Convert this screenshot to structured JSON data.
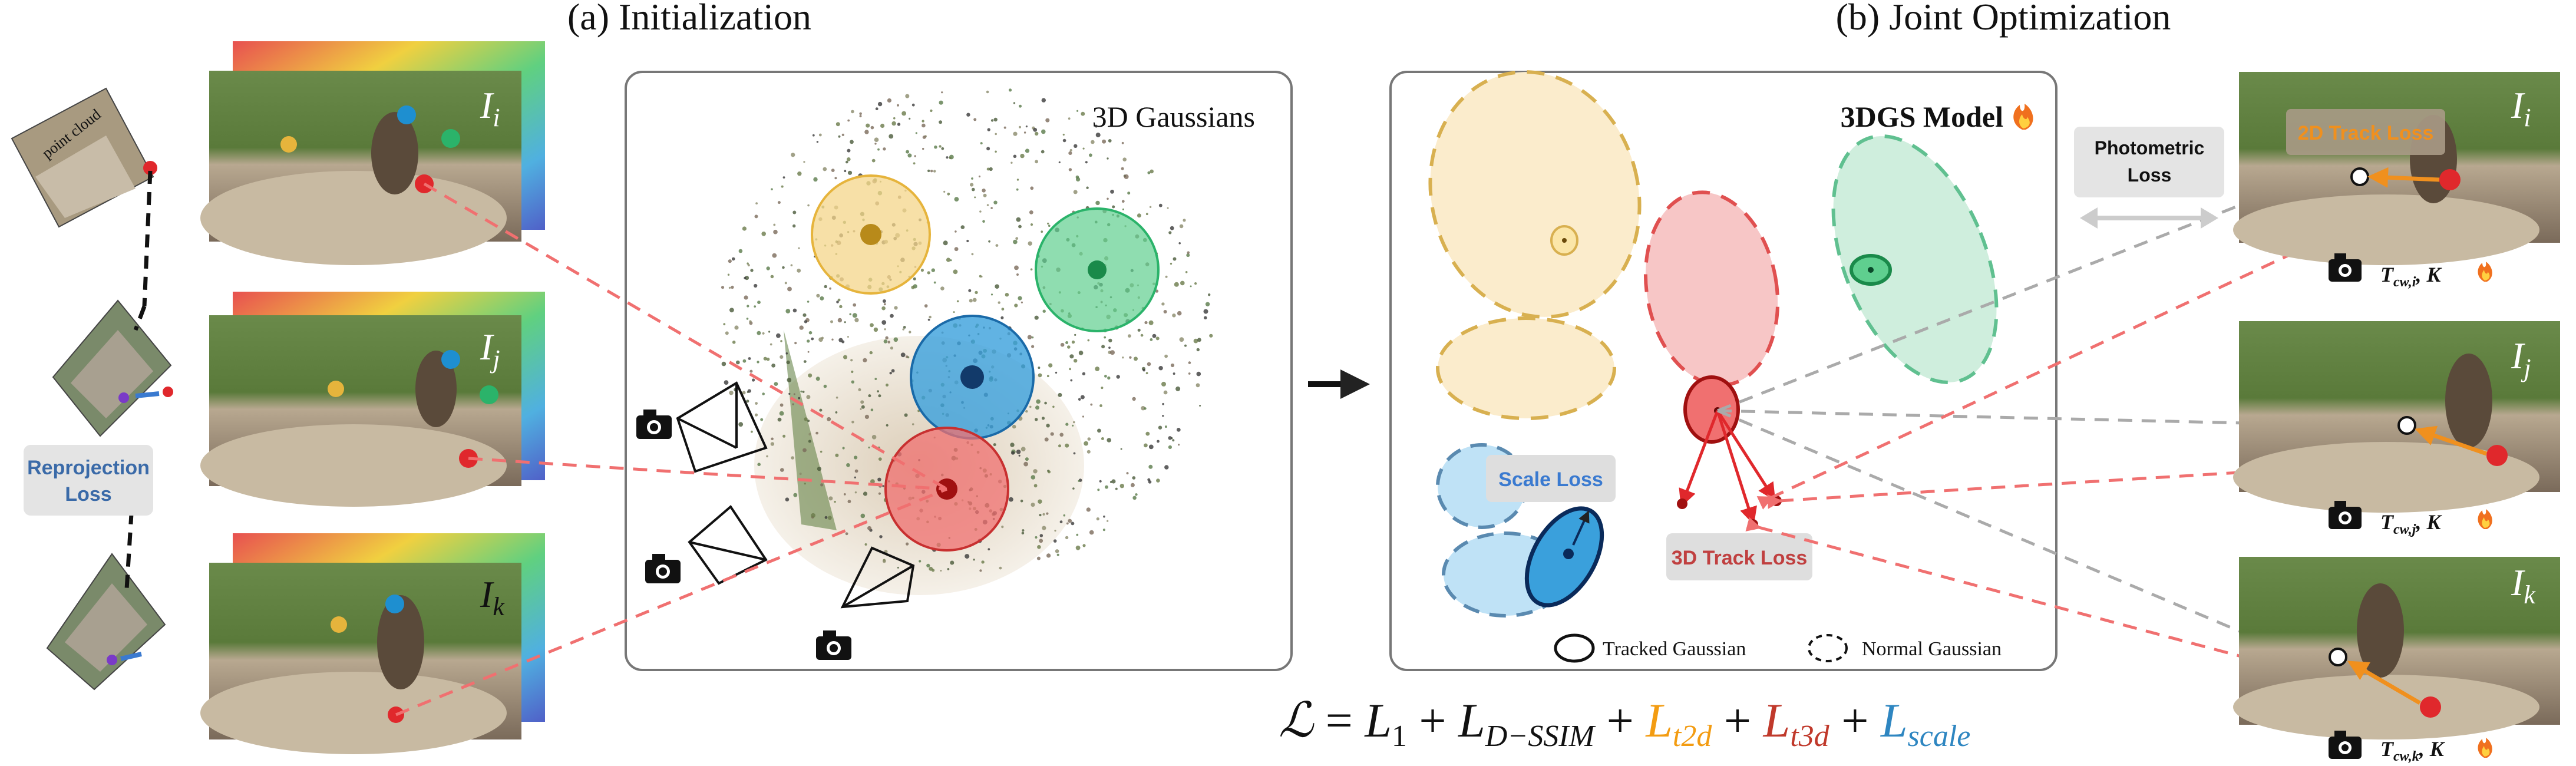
{
  "section_a": {
    "title": "(a) Initialization"
  },
  "section_b": {
    "title": "(b) Joint Optimization"
  },
  "left": {
    "point_cloud_label": "point cloud",
    "reprojection_loss": [
      "Reprojection",
      "Loss"
    ]
  },
  "frames_left": [
    {
      "sym": "I",
      "sub": "i"
    },
    {
      "sym": "I",
      "sub": "j"
    },
    {
      "sym": "I",
      "sub": "k"
    }
  ],
  "panel_a": {
    "label": "3D Gaussians"
  },
  "panel_b": {
    "label": "3DGS Model",
    "scale_loss": "Scale Loss",
    "track3d_loss": "3D Track Loss",
    "legend_tracked": "Tracked Gaussian",
    "legend_normal": "Normal Gaussian"
  },
  "photometric_loss": [
    "Photometric",
    "Loss"
  ],
  "track2d_loss": "2D Track Loss",
  "frames_right": [
    {
      "sym": "I",
      "sub": "i",
      "pose": "T",
      "pose_sub": "cw,i",
      "k": ", K"
    },
    {
      "sym": "I",
      "sub": "j",
      "pose": "T",
      "pose_sub": "cw,j",
      "k": ", K"
    },
    {
      "sym": "I",
      "sub": "k",
      "pose": "T",
      "pose_sub": "cw,k",
      "k": ", K"
    }
  ],
  "equation": {
    "lhs": "ℒ",
    "eq": " = ",
    "l1": "L",
    "l1_sub": "1",
    "plus": " + ",
    "ssim": "L",
    "ssim_sub": "D−SSIM",
    "t2d": "L",
    "t2d_sub": "t2d",
    "t3d": "L",
    "t3d_sub": "t3d",
    "scale": "L",
    "scale_sub": "scale"
  },
  "colors": {
    "yellow": "#e6b43c",
    "green": "#2bb36a",
    "blue": "#1e8fd0",
    "red": "#e0282c",
    "orange": "#f0901e",
    "dashed_red": "#f07070",
    "dashed_gray": "#aaaaaa",
    "eq_orange": "#f39c12",
    "eq_red": "#c0392b",
    "eq_blue": "#2e86c1"
  },
  "icons": [
    "camera-icon",
    "fire-icon",
    "double-arrow-icon"
  ]
}
